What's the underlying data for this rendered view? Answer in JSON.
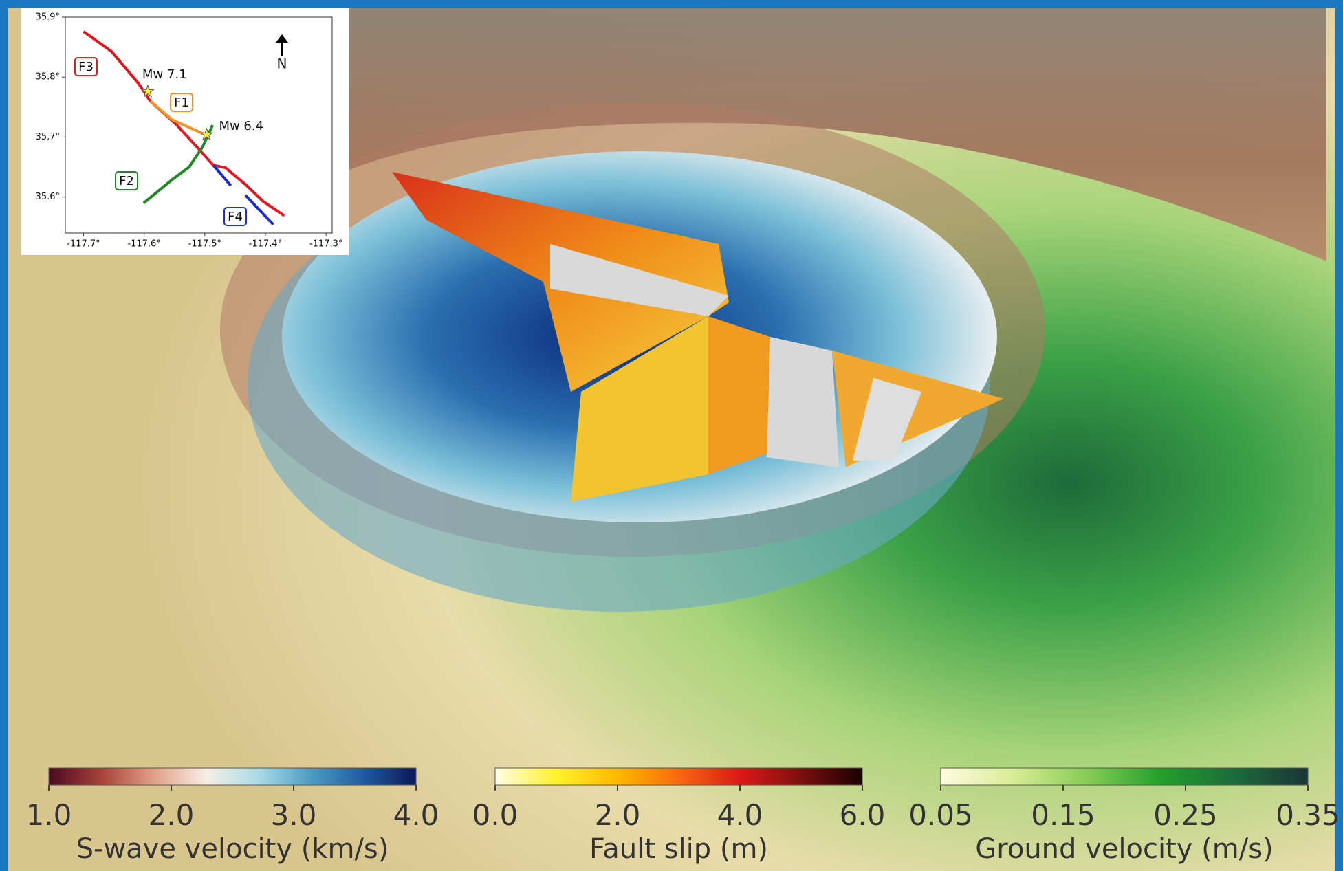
{
  "chart_data": [
    {
      "type": "line",
      "xlim": [
        -117.73,
        -117.29
      ],
      "ylim": [
        35.54,
        35.9
      ],
      "xticks": [
        {
          "value": -117.7,
          "label": "-117.7°"
        },
        {
          "value": -117.6,
          "label": "-117.6°"
        },
        {
          "value": -117.5,
          "label": "-117.5°"
        },
        {
          "value": -117.4,
          "label": "-117.4°"
        },
        {
          "value": -117.3,
          "label": "-117.3°"
        }
      ],
      "yticks": [
        {
          "value": 35.6,
          "label": "35.6°"
        },
        {
          "value": 35.7,
          "label": "35.7°"
        },
        {
          "value": 35.8,
          "label": "35.8°"
        },
        {
          "value": 35.9,
          "label": "35.9°"
        }
      ],
      "series": [
        {
          "name": "F3",
          "color": "#e8141e",
          "x": [
            -117.7,
            -117.654,
            -117.609,
            -117.59,
            -117.547,
            -117.509,
            -117.486,
            -117.466,
            -117.433,
            -117.404,
            -117.369
          ],
          "y": [
            35.876,
            35.843,
            35.789,
            35.76,
            35.721,
            35.679,
            35.653,
            35.649,
            35.621,
            35.593,
            35.569
          ]
        },
        {
          "name": "F1",
          "color": "#f39220",
          "x": [
            -117.59,
            -117.554,
            -117.497
          ],
          "y": [
            35.76,
            35.729,
            35.703
          ]
        },
        {
          "name": "F2",
          "color": "#1f8a24",
          "x": [
            -117.601,
            -117.554,
            -117.526,
            -117.504,
            -117.487
          ],
          "y": [
            35.59,
            35.629,
            35.65,
            35.683,
            35.72
          ]
        },
        {
          "name": "F4",
          "color": "#1c2fd6",
          "x": [
            -117.486,
            -117.457,
            null,
            -117.433,
            -117.387
          ],
          "y": [
            35.653,
            35.619,
            null,
            35.603,
            35.554
          ]
        }
      ],
      "epicenters": [
        {
          "label": "Mw 7.1",
          "x": -117.594,
          "y": 35.776
        },
        {
          "label": "Mw 6.4",
          "x": -117.497,
          "y": 35.704
        }
      ],
      "north": "N"
    },
    {
      "type": "colorbar",
      "title": "S-wave velocity (km/s)",
      "xlim": [
        1.0,
        4.0
      ],
      "xticks": [
        {
          "value": 1.0,
          "label": "1.0"
        },
        {
          "value": 2.0,
          "label": "2.0"
        },
        {
          "value": 3.0,
          "label": "3.0"
        },
        {
          "value": 4.0,
          "label": "4.0"
        }
      ],
      "colors": [
        "#4a0a22",
        "#a8413a",
        "#e0a088",
        "#f6efe6",
        "#a9dbe6",
        "#4d9cc2",
        "#1f5aa0",
        "#0c1858"
      ]
    },
    {
      "type": "colorbar",
      "title": "Fault slip (m)",
      "xlim": [
        0.0,
        6.0
      ],
      "xticks": [
        {
          "value": 0.0,
          "label": "0.0"
        },
        {
          "value": 2.0,
          "label": "2.0"
        },
        {
          "value": 4.0,
          "label": "4.0"
        },
        {
          "value": 6.0,
          "label": "6.0"
        }
      ],
      "colors": [
        "#fffde6",
        "#fff22a",
        "#ffb800",
        "#f56a10",
        "#d81a16",
        "#7c1010",
        "#1a0000"
      ]
    },
    {
      "type": "colorbar",
      "title": "Ground velocity (m/s)",
      "xlim": [
        0.05,
        0.35
      ],
      "xticks": [
        0.05,
        0.15,
        0.25,
        0.35
      ],
      "colors": [
        "#fffbe2",
        "#d8ec94",
        "#86cc55",
        "#22a02a",
        "#1c6b3c",
        "#1b3438"
      ]
    }
  ]
}
